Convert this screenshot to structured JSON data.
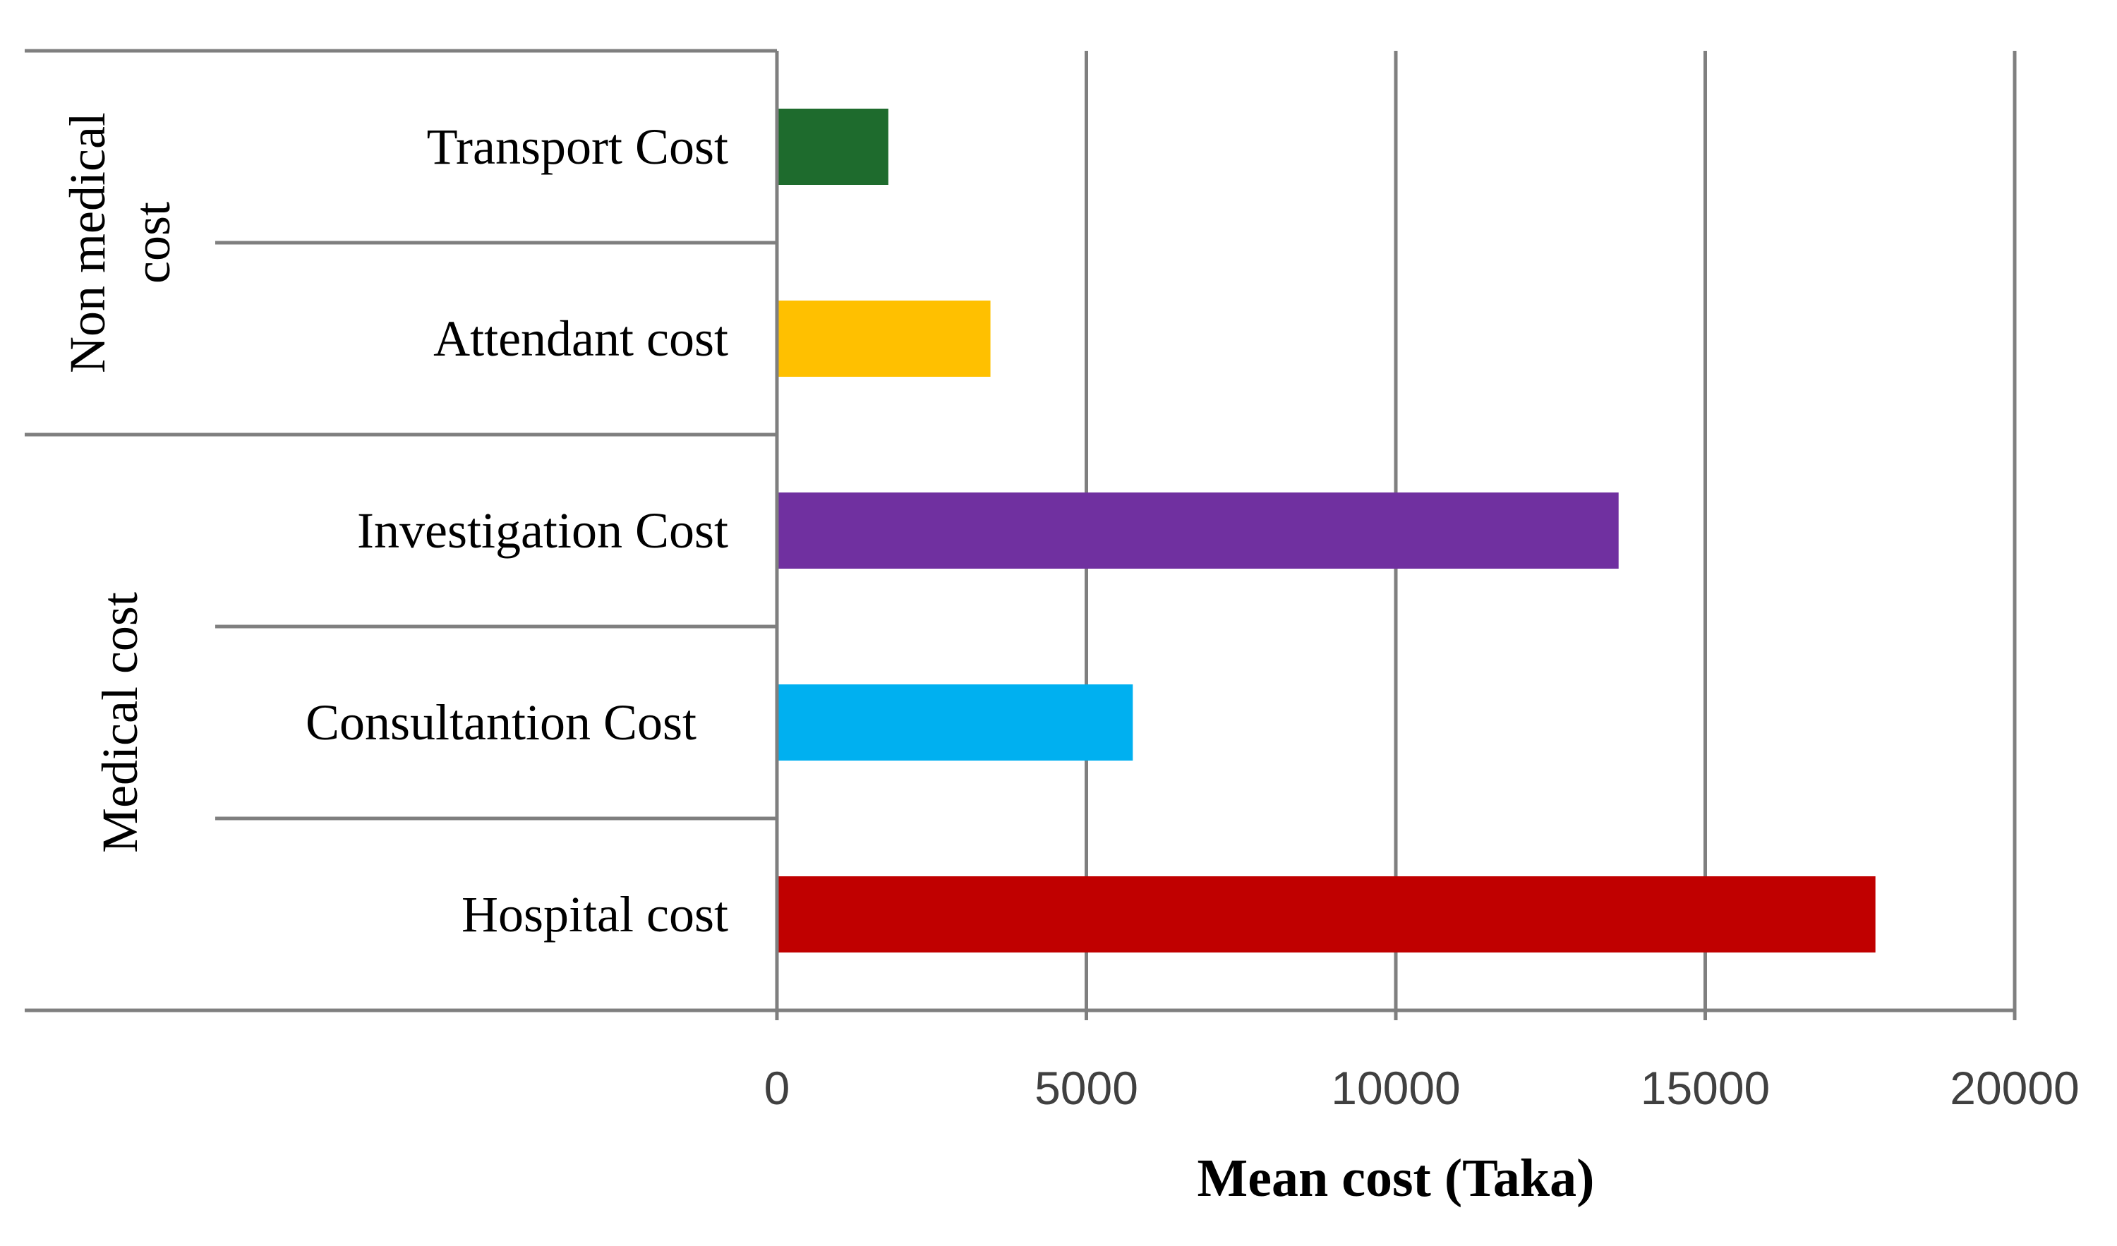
{
  "chart_data": {
    "type": "bar",
    "orientation": "horizontal",
    "groups": [
      {
        "label": "Non medical\ncost",
        "label_lines": [
          "Non medical",
          "cost"
        ],
        "categories": [
          "Transport Cost",
          "Attendant cost"
        ]
      },
      {
        "label": "Medical cost",
        "label_lines": [
          "Medical cost"
        ],
        "categories": [
          "Investigation Cost",
          "Consultantion  Cost",
          "Hospital cost"
        ]
      }
    ],
    "categories": [
      "Transport Cost",
      "Attendant cost",
      "Investigation Cost",
      "Consultantion  Cost",
      "Hospital cost"
    ],
    "values": [
      1800,
      3450,
      13600,
      5750,
      17750
    ],
    "colors": [
      "#1e6b2d",
      "#ffc000",
      "#7030a0",
      "#00b0f0",
      "#c00000"
    ],
    "xlabel": "Mean cost (Taka)",
    "ylabel": "",
    "title": "",
    "xlim": [
      0,
      20000
    ],
    "xticks": [
      "0",
      "5000",
      "10000",
      "15000",
      "20000"
    ],
    "grid": true,
    "legend": "none"
  }
}
